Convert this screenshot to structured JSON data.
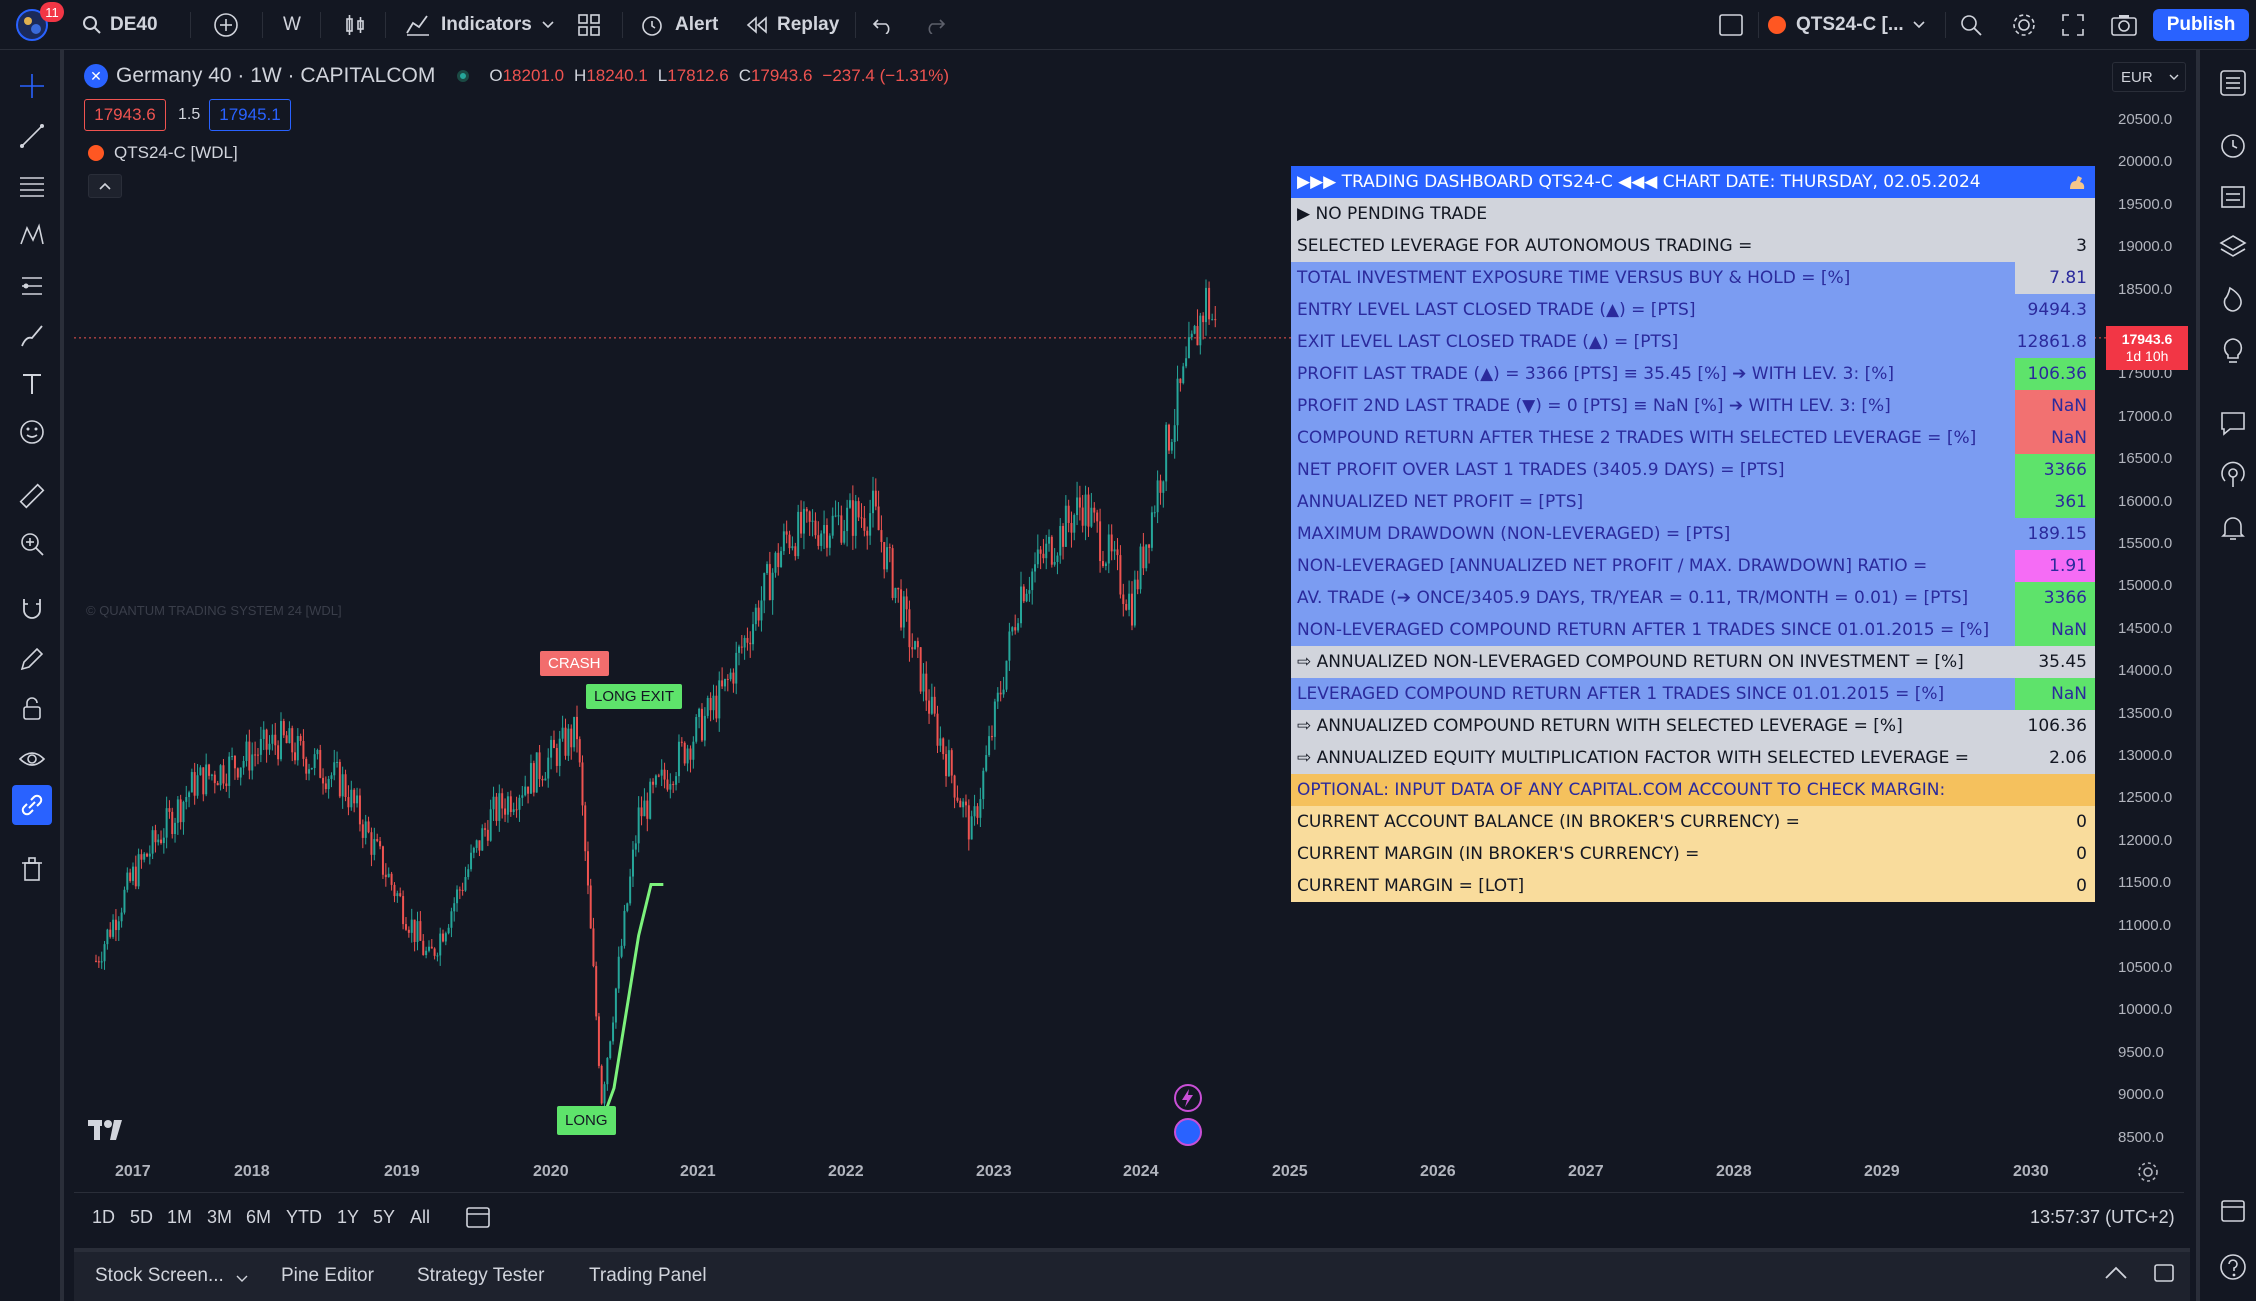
{
  "topbar": {
    "notification_count": "11",
    "symbol": "DE40",
    "interval": "W",
    "indicators_label": "Indicators",
    "alert_label": "Alert",
    "replay_label": "Replay",
    "strategy_name": "QTS24-C [...",
    "publish_label": "Publish"
  },
  "legend": {
    "symbol_title": "Germany 40 · 1W · CAPITALCOM",
    "o_label": "O",
    "o_value": "18201.0",
    "h_label": "H",
    "h_value": "18240.1",
    "l_label": "L",
    "l_value": "17812.6",
    "c_label": "C",
    "c_value": "17943.6",
    "change": "−237.4 (−1.31%)",
    "sell_price": "17943.6",
    "spread": "1.5",
    "buy_price": "17945.1",
    "indicator_name": "QTS24-C [WDL]"
  },
  "watermark": "© QUANTUM TRADING SYSTEM 24 [WDL]",
  "currency": "EUR",
  "price_axis": [
    "20500.0",
    "20000.0",
    "19500.0",
    "19000.0",
    "18500.0",
    "18000.0",
    "17500.0",
    "17000.0",
    "16500.0",
    "16000.0",
    "15500.0",
    "15000.0",
    "14500.0",
    "14000.0",
    "13500.0",
    "13000.0",
    "12500.0",
    "12000.0",
    "11500.0",
    "11000.0",
    "10500.0",
    "10000.0",
    "9500.0",
    "9000.0",
    "8500.0"
  ],
  "last_price_label": "17943.6",
  "countdown_label": "1d 10h",
  "time_axis": [
    "2017",
    "2018",
    "2019",
    "2020",
    "2021",
    "2022",
    "2023",
    "2024",
    "2025",
    "2026",
    "2027",
    "2028",
    "2029",
    "2030"
  ],
  "chart_labels": {
    "crash": "CRASH",
    "long_exit": "LONG EXIT",
    "long": "LONG"
  },
  "colors": {
    "up": "#26a69a",
    "down": "#ef5350",
    "accent": "#2962ff",
    "table_header": "#2962ff",
    "table_grey": "#d1d4dc",
    "table_blue": "#7b9cf2",
    "table_green": "#5ee36b",
    "table_red": "#f27171",
    "table_pink": "#f56cf5",
    "table_orange": "#f5c15d",
    "table_cream": "#f9dc9c"
  },
  "dashboard": {
    "header": "▶▶▶ TRADING DASHBOARD QTS24-C ◀◀◀        CHART DATE:  THURSDAY, 02.05.2024",
    "rows": [
      {
        "label": "▶ NO PENDING TRADE",
        "value": "",
        "bg": "#d1d4dc",
        "vbg": "#d1d4dc",
        "fg": "#131722"
      },
      {
        "label": "SELECTED LEVERAGE FOR AUTONOMOUS TRADING =",
        "value": "3",
        "bg": "#d1d4dc",
        "vbg": "#d1d4dc",
        "fg": "#131722"
      },
      {
        "label": "TOTAL INVESTMENT EXPOSURE TIME VERSUS BUY & HOLD = [%]",
        "value": "7.81",
        "bg": "#7b9cf2",
        "vbg": "#d1d4dc",
        "fg": "#2b2a9c"
      },
      {
        "label": "ENTRY LEVEL LAST CLOSED TRADE (▲) = [PTS]",
        "value": "9494.3",
        "bg": "#7b9cf2",
        "vbg": "#7b9cf2",
        "fg": "#2b2a9c"
      },
      {
        "label": "EXIT LEVEL LAST CLOSED TRADE (▲) = [PTS]",
        "value": "12861.8",
        "bg": "#7b9cf2",
        "vbg": "#7b9cf2",
        "fg": "#2b2a9c"
      },
      {
        "label": "PROFIT LAST TRADE (▲) = 3366 [PTS] ≡ 35.45 [%] ➔ WITH LEV. 3: [%]",
        "value": "106.36",
        "bg": "#7b9cf2",
        "vbg": "#5ee36b",
        "fg": "#2b2a9c"
      },
      {
        "label": "PROFIT 2ND LAST TRADE (▼) = 0 [PTS] ≡ NaN [%] ➔ WITH LEV. 3: [%]",
        "value": "NaN",
        "bg": "#7b9cf2",
        "vbg": "#f27171",
        "fg": "#2b2a9c"
      },
      {
        "label": "COMPOUND RETURN AFTER THESE 2 TRADES WITH SELECTED LEVERAGE = [%]",
        "value": "NaN",
        "bg": "#7b9cf2",
        "vbg": "#f27171",
        "fg": "#2b2a9c"
      },
      {
        "label": "NET PROFIT OVER LAST 1 TRADES (3405.9 DAYS) = [PTS]",
        "value": "3366",
        "bg": "#7b9cf2",
        "vbg": "#5ee36b",
        "fg": "#2b2a9c"
      },
      {
        "label": "ANNUALIZED NET PROFIT = [PTS]",
        "value": "361",
        "bg": "#7b9cf2",
        "vbg": "#5ee36b",
        "fg": "#2b2a9c"
      },
      {
        "label": "MAXIMUM DRAWDOWN (NON-LEVERAGED) = [PTS]",
        "value": "189.15",
        "bg": "#7b9cf2",
        "vbg": "#7b9cf2",
        "fg": "#2b2a9c"
      },
      {
        "label": "NON-LEVERAGED [ANNUALIZED NET PROFIT / MAX. DRAWDOWN] RATIO =",
        "value": "1.91",
        "bg": "#7b9cf2",
        "vbg": "#f56cf5",
        "fg": "#2b2a9c"
      },
      {
        "label": "AV. TRADE (➔ ONCE/3405.9 DAYS, TR/YEAR = 0.11, TR/MONTH = 0.01) = [PTS]",
        "value": "3366",
        "bg": "#7b9cf2",
        "vbg": "#5ee36b",
        "fg": "#2b2a9c"
      },
      {
        "label": "NON-LEVERAGED COMPOUND RETURN AFTER 1 TRADES SINCE 01.01.2015 = [%]",
        "value": "NaN",
        "bg": "#7b9cf2",
        "vbg": "#5ee36b",
        "fg": "#2b2a9c"
      },
      {
        "label": "⇨ ANNUALIZED NON-LEVERAGED COMPOUND RETURN ON INVESTMENT = [%]",
        "value": "35.45",
        "bg": "#d1d4dc",
        "vbg": "#d1d4dc",
        "fg": "#131722"
      },
      {
        "label": "LEVERAGED COMPOUND RETURN AFTER 1 TRADES SINCE 01.01.2015 = [%]",
        "value": "NaN",
        "bg": "#7b9cf2",
        "vbg": "#5ee36b",
        "fg": "#2b2a9c"
      },
      {
        "label": "⇨ ANNUALIZED COMPOUND RETURN WITH SELECTED LEVERAGE = [%]",
        "value": "106.36",
        "bg": "#d1d4dc",
        "vbg": "#d1d4dc",
        "fg": "#131722"
      },
      {
        "label": "⇨ ANNUALIZED EQUITY MULTIPLICATION FACTOR WITH SELECTED LEVERAGE =",
        "value": "2.06",
        "bg": "#d1d4dc",
        "vbg": "#d1d4dc",
        "fg": "#131722"
      },
      {
        "label": "OPTIONAL: INPUT DATA OF ANY CAPITAL.COM ACCOUNT TO CHECK MARGIN:",
        "value": "",
        "bg": "#f5c15d",
        "vbg": "#f5c15d",
        "fg": "#2b2a9c"
      },
      {
        "label": "CURRENT ACCOUNT BALANCE (IN BROKER'S CURRENCY) =",
        "value": "0",
        "bg": "#f9dc9c",
        "vbg": "#f9dc9c",
        "fg": "#131722"
      },
      {
        "label": "CURRENT MARGIN (IN BROKER'S CURRENCY) =",
        "value": "0",
        "bg": "#f9dc9c",
        "vbg": "#f9dc9c",
        "fg": "#131722"
      },
      {
        "label": "CURRENT MARGIN = [LOT]",
        "value": "0",
        "bg": "#f9dc9c",
        "vbg": "#f9dc9c",
        "fg": "#131722"
      }
    ]
  },
  "range_buttons": [
    "1D",
    "5D",
    "1M",
    "3M",
    "6M",
    "YTD",
    "1Y",
    "5Y",
    "All"
  ],
  "clock": "13:57:37 (UTC+2)",
  "bottom_tabs": {
    "stock_screener": "Stock Screen...",
    "pine_editor": "Pine Editor",
    "strategy_tester": "Strategy Tester",
    "trading_panel": "Trading Panel"
  },
  "chart_data": {
    "type": "candlestick",
    "x": [
      "2016-10",
      "2017-01",
      "2017-06",
      "2018-01",
      "2018-06",
      "2019-01",
      "2019-06",
      "2020-01",
      "2020-03",
      "2020-06",
      "2021-01",
      "2021-06",
      "2022-01",
      "2022-06",
      "2022-09",
      "2023-01",
      "2023-06",
      "2023-10",
      "2024-01",
      "2024-04",
      "2024-05"
    ],
    "close": [
      10600,
      11600,
      12700,
      13200,
      12700,
      10600,
      12300,
      13300,
      9000,
      12300,
      13800,
      15600,
      15900,
      13400,
      12100,
      15000,
      16000,
      14800,
      16800,
      18400,
      17943.6
    ],
    "ylim": [
      8300,
      20700
    ]
  }
}
